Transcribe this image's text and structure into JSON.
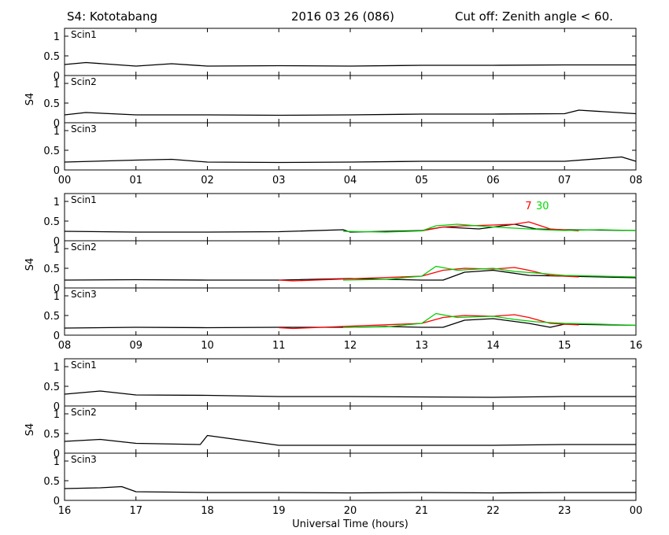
{
  "header": {
    "station": "S4: Kototabang",
    "date": "2016 03 26 (086)",
    "cutoff": "Cut off: Zenith angle < 60."
  },
  "chart_data": {
    "type": "line",
    "xlabel": "Universal Time (hours)",
    "ylabel": "S4",
    "ylim": [
      0,
      1.2
    ],
    "y_ticks": [
      "0",
      "0.5",
      "1"
    ],
    "grid": false,
    "groups": [
      {
        "x_range": [
          0,
          8
        ],
        "tick_labels": [
          "00",
          "01",
          "02",
          "03",
          "04",
          "05",
          "06",
          "07",
          "08"
        ],
        "panels": [
          {
            "label": "Scin1",
            "series": [
              {
                "color": "#000000",
                "x": [
                  0,
                  0.3,
                  1,
                  1.5,
                  2,
                  3,
                  4,
                  5,
                  6,
                  7,
                  8
                ],
                "y": [
                  0.28,
                  0.33,
                  0.24,
                  0.3,
                  0.24,
                  0.25,
                  0.24,
                  0.26,
                  0.26,
                  0.27,
                  0.27
                ]
              }
            ]
          },
          {
            "label": "Scin2",
            "series": [
              {
                "color": "#000000",
                "x": [
                  0,
                  0.3,
                  1,
                  2,
                  3,
                  4,
                  5,
                  6,
                  7,
                  7.2,
                  8
                ],
                "y": [
                  0.2,
                  0.26,
                  0.2,
                  0.2,
                  0.19,
                  0.2,
                  0.22,
                  0.22,
                  0.23,
                  0.32,
                  0.23
                ]
              }
            ]
          },
          {
            "label": "Scin3",
            "series": [
              {
                "color": "#000000",
                "x": [
                  0,
                  1,
                  1.5,
                  2,
                  3,
                  4,
                  5,
                  6,
                  7,
                  7.8,
                  8
                ],
                "y": [
                  0.2,
                  0.25,
                  0.27,
                  0.2,
                  0.19,
                  0.2,
                  0.22,
                  0.22,
                  0.22,
                  0.33,
                  0.22
                ]
              }
            ]
          }
        ]
      },
      {
        "x_range": [
          8,
          16
        ],
        "tick_labels": [
          "08",
          "09",
          "10",
          "11",
          "12",
          "13",
          "14",
          "15",
          "16"
        ],
        "annotations": [
          {
            "text": "7",
            "color": "#ff0000",
            "x": 14.45,
            "y": 0.9
          },
          {
            "text": "30",
            "color": "#00dd00",
            "x": 14.6,
            "y": 0.9
          }
        ],
        "panels": [
          {
            "label": "Scin1",
            "series": [
              {
                "color": "#000000",
                "x": [
                  8,
                  9,
                  10,
                  11,
                  11.9,
                  12,
                  12.5,
                  13,
                  13.3,
                  13.8,
                  14.3,
                  14.6,
                  15,
                  16
                ],
                "y": [
                  0.24,
                  0.22,
                  0.22,
                  0.23,
                  0.28,
                  0.22,
                  0.24,
                  0.26,
                  0.35,
                  0.3,
                  0.42,
                  0.3,
                  0.28,
                  0.26
                ]
              },
              {
                "color": "#ff0000",
                "x": [
                  13,
                  13.3,
                  13.6,
                  14,
                  14.3,
                  14.5,
                  14.8,
                  15.2
                ],
                "y": [
                  0.25,
                  0.35,
                  0.38,
                  0.4,
                  0.42,
                  0.48,
                  0.3,
                  0.25
                ]
              },
              {
                "color": "#00cc00",
                "x": [
                  11.9,
                  12.5,
                  13,
                  13.2,
                  13.5,
                  14,
                  14.3,
                  14.7,
                  15,
                  15.5,
                  16
                ],
                "y": [
                  0.24,
                  0.22,
                  0.25,
                  0.38,
                  0.42,
                  0.35,
                  0.32,
                  0.28,
                  0.26,
                  0.28,
                  0.26
                ]
              }
            ]
          },
          {
            "label": "Scin2",
            "series": [
              {
                "color": "#000000",
                "x": [
                  8,
                  9,
                  10,
                  11,
                  12,
                  12.5,
                  13,
                  13.3,
                  13.6,
                  14,
                  14.5,
                  15,
                  16
                ],
                "y": [
                  0.2,
                  0.21,
                  0.2,
                  0.2,
                  0.24,
                  0.22,
                  0.2,
                  0.2,
                  0.4,
                  0.45,
                  0.32,
                  0.3,
                  0.26
                ]
              },
              {
                "color": "#ff0000",
                "x": [
                  11,
                  11.2,
                  13,
                  13.3,
                  13.6,
                  14,
                  14.3,
                  14.5,
                  14.8,
                  15.2
                ],
                "y": [
                  0.2,
                  0.18,
                  0.3,
                  0.45,
                  0.5,
                  0.48,
                  0.52,
                  0.45,
                  0.32,
                  0.28
                ]
              },
              {
                "color": "#00cc00",
                "x": [
                  11.9,
                  12.5,
                  13,
                  13.2,
                  13.5,
                  14,
                  14.3,
                  14.6,
                  15,
                  15.5,
                  16
                ],
                "y": [
                  0.2,
                  0.22,
                  0.3,
                  0.55,
                  0.45,
                  0.5,
                  0.42,
                  0.38,
                  0.32,
                  0.3,
                  0.28
                ]
              }
            ]
          },
          {
            "label": "Scin3",
            "series": [
              {
                "color": "#000000",
                "x": [
                  8,
                  9,
                  10,
                  11,
                  12,
                  12.5,
                  13,
                  13.3,
                  13.6,
                  14,
                  14.5,
                  14.8,
                  15,
                  16
                ],
                "y": [
                  0.18,
                  0.2,
                  0.19,
                  0.2,
                  0.2,
                  0.22,
                  0.2,
                  0.2,
                  0.38,
                  0.42,
                  0.3,
                  0.2,
                  0.28,
                  0.25
                ]
              },
              {
                "color": "#ff0000",
                "x": [
                  11,
                  11.2,
                  13,
                  13.3,
                  13.6,
                  14,
                  14.3,
                  14.5,
                  14.8,
                  15.2
                ],
                "y": [
                  0.19,
                  0.17,
                  0.3,
                  0.45,
                  0.5,
                  0.48,
                  0.52,
                  0.45,
                  0.3,
                  0.26
                ]
              },
              {
                "color": "#00cc00",
                "x": [
                  11.9,
                  12.5,
                  13,
                  13.2,
                  13.5,
                  14,
                  14.3,
                  14.6,
                  15,
                  15.5,
                  16
                ],
                "y": [
                  0.2,
                  0.21,
                  0.3,
                  0.55,
                  0.45,
                  0.48,
                  0.4,
                  0.34,
                  0.3,
                  0.28,
                  0.25
                ]
              }
            ]
          }
        ]
      },
      {
        "x_range": [
          16,
          24
        ],
        "tick_labels": [
          "16",
          "17",
          "18",
          "19",
          "20",
          "21",
          "22",
          "23",
          "00"
        ],
        "panels": [
          {
            "label": "Scin1",
            "series": [
              {
                "color": "#000000",
                "x": [
                  16,
                  16.5,
                  17,
                  18,
                  19,
                  20,
                  21,
                  22,
                  23,
                  24
                ],
                "y": [
                  0.3,
                  0.38,
                  0.28,
                  0.27,
                  0.24,
                  0.24,
                  0.23,
                  0.22,
                  0.24,
                  0.24
                ]
              }
            ]
          },
          {
            "label": "Scin2",
            "series": [
              {
                "color": "#000000",
                "x": [
                  16,
                  16.5,
                  17,
                  17.9,
                  18,
                  19,
                  20,
                  21,
                  22,
                  23,
                  24
                ],
                "y": [
                  0.3,
                  0.35,
                  0.25,
                  0.22,
                  0.45,
                  0.2,
                  0.2,
                  0.2,
                  0.2,
                  0.22,
                  0.22
                ]
              }
            ]
          },
          {
            "label": "Scin3",
            "series": [
              {
                "color": "#000000",
                "x": [
                  16,
                  16.5,
                  16.8,
                  17,
                  18,
                  19,
                  20,
                  21,
                  22,
                  23,
                  24
                ],
                "y": [
                  0.3,
                  0.32,
                  0.35,
                  0.22,
                  0.2,
                  0.2,
                  0.19,
                  0.2,
                  0.19,
                  0.2,
                  0.2
                ]
              }
            ]
          }
        ]
      }
    ]
  }
}
